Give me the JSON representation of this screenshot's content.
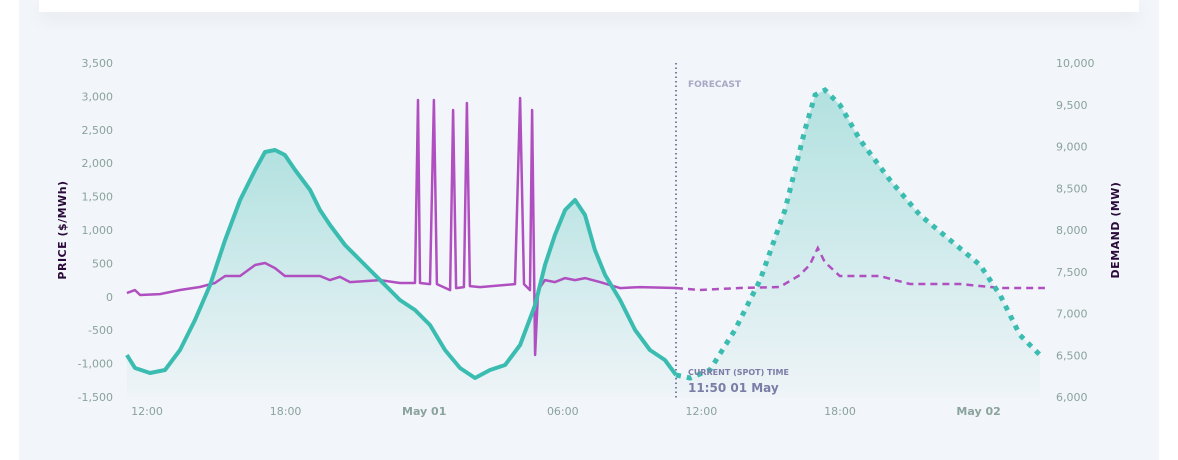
{
  "chart_data": {
    "type": "line",
    "x_unit": "hours since 30 Apr 00:00",
    "xlim": [
      11.1,
      50.9
    ],
    "x_ticks": [
      {
        "h": 12,
        "label": "12:00",
        "bold": false
      },
      {
        "h": 18,
        "label": "18:00",
        "bold": false
      },
      {
        "h": 24,
        "label": "May 01",
        "bold": true
      },
      {
        "h": 30,
        "label": "06:00",
        "bold": false
      },
      {
        "h": 36,
        "label": "12:00",
        "bold": false
      },
      {
        "h": 42,
        "label": "18:00",
        "bold": false
      },
      {
        "h": 48,
        "label": "May 02",
        "bold": true
      }
    ],
    "y_left": {
      "label": "PRICE ($/MWh)",
      "lim": [
        -1500,
        3500
      ],
      "ticks": [
        [
          3500,
          "3,500"
        ],
        [
          3000,
          "3,000"
        ],
        [
          2500,
          "2,500"
        ],
        [
          2000,
          "2,000"
        ],
        [
          1500,
          "1,500"
        ],
        [
          1000,
          "1,000"
        ],
        [
          500,
          "500"
        ],
        [
          0,
          "0"
        ],
        [
          -500,
          "-500"
        ],
        [
          -1000,
          "-1,000"
        ],
        [
          -1500,
          "-1,500"
        ]
      ]
    },
    "y_right": {
      "label": "DEMAND (MW)",
      "lim": [
        6000,
        10000
      ],
      "ticks": [
        [
          10000,
          "10,000"
        ],
        [
          9500,
          "9,500"
        ],
        [
          9000,
          "9,000"
        ],
        [
          8500,
          "8,500"
        ],
        [
          8000,
          "8,000"
        ],
        [
          7500,
          "7,500"
        ],
        [
          7000,
          "7,000"
        ],
        [
          6500,
          "6,500"
        ],
        [
          6000,
          "6,000"
        ]
      ]
    },
    "current_time": {
      "h": 34.9,
      "label": "CURRENT (SPOT) TIME",
      "value": "11:50 01 May"
    },
    "forecast_label": "FORECAST",
    "colors": {
      "demand": "#3bbcb0",
      "price": "#b050c0",
      "divider": "#7c7ca6"
    },
    "series": [
      {
        "name": "demand_actual",
        "axis": "right",
        "style": "solid",
        "points": [
          [
            11.13,
            6503
          ],
          [
            11.48,
            6347
          ],
          [
            12.13,
            6287
          ],
          [
            12.78,
            6323
          ],
          [
            13.43,
            6563
          ],
          [
            14.08,
            6922
          ],
          [
            14.73,
            7341
          ],
          [
            15.38,
            7880
          ],
          [
            16.03,
            8359
          ],
          [
            16.68,
            8719
          ],
          [
            17.11,
            8934
          ],
          [
            17.54,
            8958
          ],
          [
            17.97,
            8898
          ],
          [
            18.41,
            8719
          ],
          [
            19.06,
            8479
          ],
          [
            19.49,
            8240
          ],
          [
            19.92,
            8060
          ],
          [
            20.57,
            7820
          ],
          [
            21.22,
            7641
          ],
          [
            21.87,
            7461
          ],
          [
            22.52,
            7281
          ],
          [
            22.95,
            7162
          ],
          [
            23.6,
            7042
          ],
          [
            24.25,
            6862
          ],
          [
            24.9,
            6563
          ],
          [
            25.55,
            6347
          ],
          [
            26.2,
            6227
          ],
          [
            26.85,
            6323
          ],
          [
            27.5,
            6383
          ],
          [
            28.15,
            6623
          ],
          [
            28.8,
            7102
          ],
          [
            29.23,
            7581
          ],
          [
            29.66,
            7940
          ],
          [
            30.1,
            8240
          ],
          [
            30.53,
            8359
          ],
          [
            30.96,
            8180
          ],
          [
            31.39,
            7760
          ],
          [
            31.83,
            7461
          ],
          [
            32.48,
            7162
          ],
          [
            33.13,
            6802
          ],
          [
            33.77,
            6563
          ],
          [
            34.42,
            6443
          ],
          [
            34.9,
            6263
          ]
        ]
      },
      {
        "name": "demand_forecast",
        "axis": "right",
        "style": "dotted",
        "points": [
          [
            34.9,
            6263
          ],
          [
            35.51,
            6227
          ],
          [
            36.37,
            6323
          ],
          [
            37.45,
            6802
          ],
          [
            38.54,
            7401
          ],
          [
            39.62,
            8240
          ],
          [
            40.48,
            9198
          ],
          [
            40.92,
            9617
          ],
          [
            41.35,
            9677
          ],
          [
            42.0,
            9497
          ],
          [
            42.87,
            9078
          ],
          [
            44.16,
            8599
          ],
          [
            45.46,
            8180
          ],
          [
            46.76,
            7880
          ],
          [
            48.06,
            7581
          ],
          [
            48.93,
            7222
          ],
          [
            49.79,
            6742
          ],
          [
            50.66,
            6503
          ]
        ]
      },
      {
        "name": "price_actual",
        "axis": "left",
        "style": "solid",
        "points": [
          [
            11.13,
            57
          ],
          [
            11.48,
            100
          ],
          [
            11.7,
            27
          ],
          [
            12.56,
            40
          ],
          [
            13.43,
            102
          ],
          [
            14.29,
            147
          ],
          [
            14.94,
            207
          ],
          [
            15.38,
            311
          ],
          [
            16.03,
            311
          ],
          [
            16.68,
            476
          ],
          [
            17.11,
            506
          ],
          [
            17.54,
            430
          ],
          [
            17.97,
            311
          ],
          [
            19.49,
            311
          ],
          [
            19.92,
            250
          ],
          [
            20.35,
            300
          ],
          [
            20.79,
            220
          ],
          [
            22.09,
            250
          ],
          [
            22.95,
            207
          ],
          [
            23.6,
            207
          ],
          [
            23.73,
            2946
          ],
          [
            23.82,
            207
          ],
          [
            24.25,
            190
          ],
          [
            24.42,
            2946
          ],
          [
            24.55,
            190
          ],
          [
            25.12,
            100
          ],
          [
            25.25,
            2796
          ],
          [
            25.38,
            130
          ],
          [
            25.72,
            145
          ],
          [
            25.85,
            2901
          ],
          [
            25.98,
            160
          ],
          [
            26.42,
            145
          ],
          [
            27.93,
            190
          ],
          [
            28.15,
            2976
          ],
          [
            28.32,
            190
          ],
          [
            28.58,
            100
          ],
          [
            28.67,
            2796
          ],
          [
            28.8,
            -871
          ],
          [
            28.93,
            100
          ],
          [
            29.23,
            250
          ],
          [
            29.66,
            220
          ],
          [
            30.1,
            280
          ],
          [
            30.53,
            250
          ],
          [
            30.96,
            280
          ],
          [
            31.61,
            220
          ],
          [
            32.48,
            130
          ],
          [
            33.34,
            145
          ],
          [
            34.9,
            132
          ]
        ]
      },
      {
        "name": "price_forecast",
        "axis": "left",
        "style": "dashed",
        "points": [
          [
            34.9,
            132
          ],
          [
            35.93,
            102
          ],
          [
            37.66,
            132
          ],
          [
            39.39,
            147
          ],
          [
            40.26,
            325
          ],
          [
            40.69,
            476
          ],
          [
            41.04,
            731
          ],
          [
            41.34,
            520
          ],
          [
            41.99,
            311
          ],
          [
            43.72,
            311
          ],
          [
            45.02,
            192
          ],
          [
            47.19,
            192
          ],
          [
            48.92,
            132
          ],
          [
            50.87,
            132
          ]
        ]
      }
    ]
  }
}
